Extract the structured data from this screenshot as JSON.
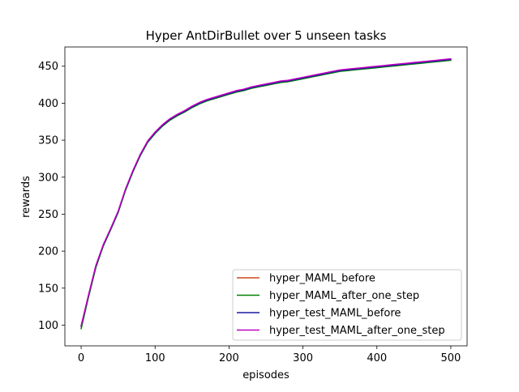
{
  "chart_data": {
    "type": "line",
    "title": "Hyper AntDirBullet over 5 unseen tasks",
    "xlabel": "episodes",
    "ylabel": "rewards",
    "xlim": [
      -22,
      522
    ],
    "ylim": [
      72,
      476
    ],
    "xticks": [
      0,
      100,
      200,
      300,
      400,
      500
    ],
    "yticks": [
      100,
      150,
      200,
      250,
      300,
      350,
      400,
      450
    ],
    "grid": false,
    "legend_position": "lower-right",
    "x": [
      0,
      10,
      20,
      30,
      40,
      50,
      60,
      70,
      80,
      90,
      100,
      110,
      120,
      130,
      140,
      150,
      160,
      170,
      180,
      190,
      200,
      210,
      220,
      230,
      240,
      250,
      260,
      270,
      280,
      290,
      300,
      310,
      320,
      330,
      340,
      350,
      360,
      370,
      380,
      390,
      400,
      410,
      420,
      430,
      440,
      450,
      460,
      470,
      480,
      490,
      500
    ],
    "series": [
      {
        "name": "hyper_MAML_before",
        "color": "#cc4a1a",
        "values": [
          99,
          140,
          180,
          208,
          230,
          253,
          283,
          308,
          330,
          348,
          360,
          370,
          378,
          384,
          389,
          395,
          400,
          404,
          407,
          410,
          413,
          416,
          418,
          421,
          423,
          425,
          427,
          429,
          430,
          432,
          434,
          436,
          438,
          440,
          442,
          444,
          445,
          446,
          447,
          448,
          449,
          450,
          451,
          452,
          453,
          454,
          455,
          456,
          457,
          458,
          459
        ]
      },
      {
        "name": "hyper_MAML_after_one_step",
        "color": "#008000",
        "values": [
          95,
          138,
          178,
          207,
          229,
          252,
          282,
          307,
          329,
          347,
          359,
          369,
          377,
          383,
          388,
          394,
          399,
          403,
          406,
          409,
          412,
          415,
          417,
          420,
          422,
          424,
          426,
          428,
          429,
          431,
          433,
          435,
          437,
          439,
          441,
          443,
          444,
          445,
          446,
          447,
          448,
          449,
          450,
          451,
          452,
          453,
          454,
          455,
          456,
          457,
          458
        ]
      },
      {
        "name": "hyper_test_MAML_before",
        "color": "#1a1aa0",
        "values": [
          98,
          140,
          180,
          208,
          230,
          253,
          283,
          308,
          330,
          348,
          360,
          370,
          378,
          384,
          389,
          395,
          400,
          404,
          407,
          410,
          413,
          416,
          418,
          421,
          423,
          425,
          427,
          429,
          430,
          432,
          434,
          436,
          438,
          440,
          442,
          444,
          445,
          446,
          447,
          448,
          449,
          450,
          451,
          452,
          453,
          454,
          455,
          456,
          457,
          458,
          459
        ]
      },
      {
        "name": "hyper_test_MAML_after_one_step",
        "color": "#bf00bf",
        "values": [
          99,
          141,
          181,
          209,
          231,
          254,
          284,
          309,
          331,
          349,
          361,
          371,
          379,
          385,
          390,
          396,
          401,
          405,
          408,
          411,
          414,
          417,
          419,
          422,
          424,
          426,
          428,
          430,
          431,
          433,
          435,
          437,
          439,
          441,
          443,
          445,
          446,
          447,
          448,
          449,
          450,
          451,
          452,
          453,
          454,
          455,
          456,
          457,
          458,
          459,
          460
        ]
      }
    ]
  }
}
